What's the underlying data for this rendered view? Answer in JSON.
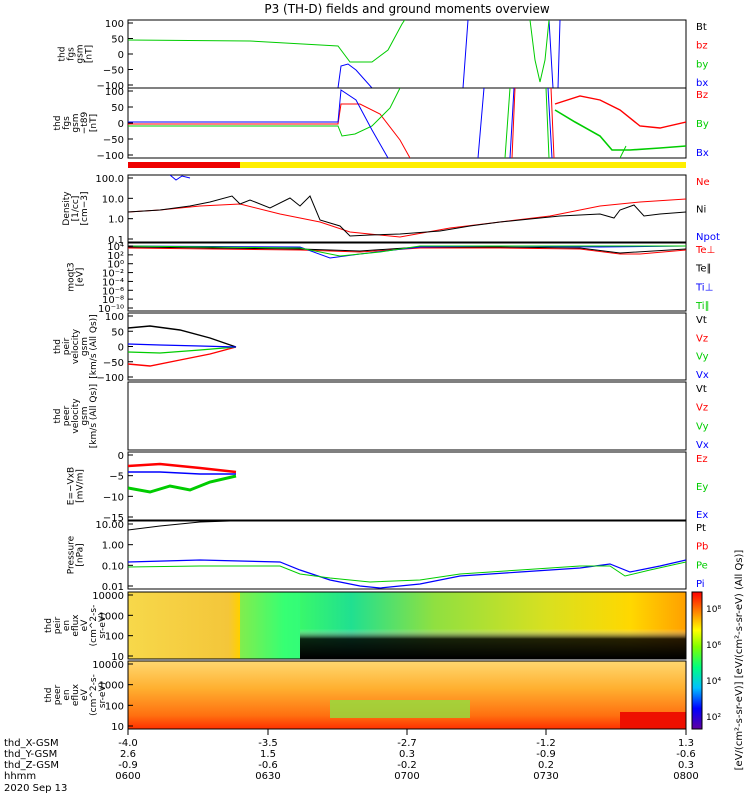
{
  "title": "P3 (TH-D) fields and ground moments overview",
  "panels": [
    {
      "id": "fgs_gsm",
      "ylabel": [
        "thd",
        "fgs",
        "gsm",
        "[nT]"
      ],
      "ticks": [
        "100",
        "50",
        "0",
        "−50",
        "−100"
      ],
      "legend": [
        {
          "text": "Bt",
          "color": "#000000"
        },
        {
          "text": "bz",
          "color": "#ff0000"
        },
        {
          "text": "by",
          "color": "#00cc00"
        },
        {
          "text": "bx",
          "color": "#0000ff"
        }
      ]
    },
    {
      "id": "fgs_gsm_t89",
      "ylabel": [
        "thd",
        "fgs",
        "gsm",
        "−t89",
        "[nT]"
      ],
      "ticks": [
        "100",
        "50",
        "0",
        "−50",
        "−100"
      ],
      "legend": [
        {
          "text": "Bz",
          "color": "#ff0000"
        },
        {
          "text": "By",
          "color": "#00cc00"
        },
        {
          "text": "Bx",
          "color": "#0000ff"
        }
      ]
    },
    {
      "id": "density",
      "ylabel": [
        "Density",
        "[1/cc]",
        "[cm−3]"
      ],
      "ticks": [
        "100.0",
        "10.0",
        "1.0",
        "0.1"
      ],
      "legend": [
        {
          "text": "Ne",
          "color": "#ff0000"
        },
        {
          "text": "Ni",
          "color": "#000000"
        },
        {
          "text": "Npot",
          "color": "#0000ff"
        }
      ]
    },
    {
      "id": "temperature",
      "ylabel": [
        "moqt3",
        "[eV]"
      ],
      "ticks": [
        "10⁴",
        "10²",
        "10⁰",
        "10⁻²",
        "10⁻⁴",
        "10⁻⁶",
        "10⁻⁸",
        "10⁻¹⁰"
      ],
      "legend": [
        {
          "text": "Te⊥",
          "color": "#ff0000"
        },
        {
          "text": "Te∥",
          "color": "#000000"
        },
        {
          "text": "Ti⊥",
          "color": "#0000ff"
        },
        {
          "text": "Ti∥",
          "color": "#00cc00"
        }
      ]
    },
    {
      "id": "peir_velocity",
      "ylabel": [
        "thd",
        "peir",
        "velocity",
        "gsm",
        "[km/s (All Qs)]"
      ],
      "ticks": [
        "100",
        "50",
        "0",
        "−50",
        "−100"
      ],
      "legend": [
        {
          "text": "Vt",
          "color": "#000000"
        },
        {
          "text": "Vz",
          "color": "#ff0000"
        },
        {
          "text": "Vy",
          "color": "#00cc00"
        },
        {
          "text": "Vx",
          "color": "#0000ff"
        }
      ]
    },
    {
      "id": "peer_velocity",
      "ylabel": [
        "thd",
        "peer",
        "velocity",
        "gsm",
        "[km/s (All Qs)]"
      ],
      "ticks": [],
      "legend": [
        {
          "text": "Vt",
          "color": "#000000"
        },
        {
          "text": "Vz",
          "color": "#ff0000"
        },
        {
          "text": "Vy",
          "color": "#00cc00"
        },
        {
          "text": "Vx",
          "color": "#0000ff"
        }
      ]
    },
    {
      "id": "efield",
      "ylabel": [
        "E=−VxB",
        "[mV/m]"
      ],
      "ticks": [
        "0",
        "−5",
        "−10",
        "−15"
      ],
      "legend": [
        {
          "text": "Ez",
          "color": "#ff0000"
        },
        {
          "text": "Ey",
          "color": "#00cc00"
        },
        {
          "text": "Ex",
          "color": "#0000ff"
        }
      ]
    },
    {
      "id": "pressure",
      "ylabel": [
        "Pressure",
        "[nPa]"
      ],
      "ticks": [
        "10.00",
        "1.00",
        "0.10",
        "0.01"
      ],
      "legend": [
        {
          "text": "Pt",
          "color": "#000000"
        },
        {
          "text": "Pb",
          "color": "#ff0000"
        },
        {
          "text": "Pe",
          "color": "#00cc00"
        },
        {
          "text": "Pi",
          "color": "#0000ff"
        }
      ]
    },
    {
      "id": "peir_eflux",
      "ylabel": [
        "thd",
        "peir",
        "en",
        "eflux",
        "eV",
        "(cm^2-s-",
        "sr-eV)"
      ],
      "ticks": [
        "10000",
        "1000",
        "100",
        "10"
      ],
      "legend": []
    },
    {
      "id": "peer_eflux",
      "ylabel": [
        "thd",
        "peer",
        "en",
        "eflux",
        "eV",
        "(cm^2-s-",
        "sr-eV)"
      ],
      "ticks": [
        "10000",
        "1000",
        "100",
        "10"
      ],
      "legend": []
    }
  ],
  "colorbar": {
    "label": "[eV/(cm²-s-sr-eV)] [eV/(cm²-s-sr-eV) (All Qs)]",
    "ticks": [
      "10⁸",
      "10⁶",
      "10⁴",
      "10²"
    ]
  },
  "xaxis": {
    "row_labels": [
      "thd_X-GSM",
      "thd_Y-GSM",
      "thd_Z-GSM",
      "hhmm",
      "2020 Sep 13"
    ],
    "columns": [
      {
        "x": "-4.0",
        "y": "2.6",
        "z": "-0.9",
        "t": "0600"
      },
      {
        "x": "-3.5",
        "y": "1.5",
        "z": "-0.6",
        "t": "0630"
      },
      {
        "x": "-2.7",
        "y": "0.3",
        "z": "-0.2",
        "t": "0700"
      },
      {
        "x": "-1.2",
        "y": "-0.9",
        "z": "0.2",
        "t": "0730"
      },
      {
        "x": "1.3",
        "y": "-0.6",
        "z": "0.3",
        "t": "0800"
      }
    ]
  },
  "chart_data": {
    "type": "line",
    "title": "P3 (TH-D) fields and ground moments overview",
    "x": [
      "0600",
      "0630",
      "0700",
      "0730",
      "0800"
    ],
    "xlabel": "hhmm",
    "date": "2020 Sep 13",
    "series": [
      {
        "name": "by",
        "values": [
          40,
          38,
          -15,
          100,
          100
        ]
      },
      {
        "name": "Ni",
        "values": [
          1.5,
          6,
          0.1,
          0.5,
          0.8
        ]
      },
      {
        "name": "Ne",
        "values": [
          1.5,
          0.5,
          0.1,
          1,
          3
        ]
      },
      {
        "name": "Pi",
        "values": [
          0.1,
          0.08,
          0.004,
          0.04,
          0.15
        ]
      },
      {
        "name": "Pe",
        "values": [
          0.06,
          0.05,
          0.005,
          0.03,
          0.15
        ]
      }
    ]
  }
}
